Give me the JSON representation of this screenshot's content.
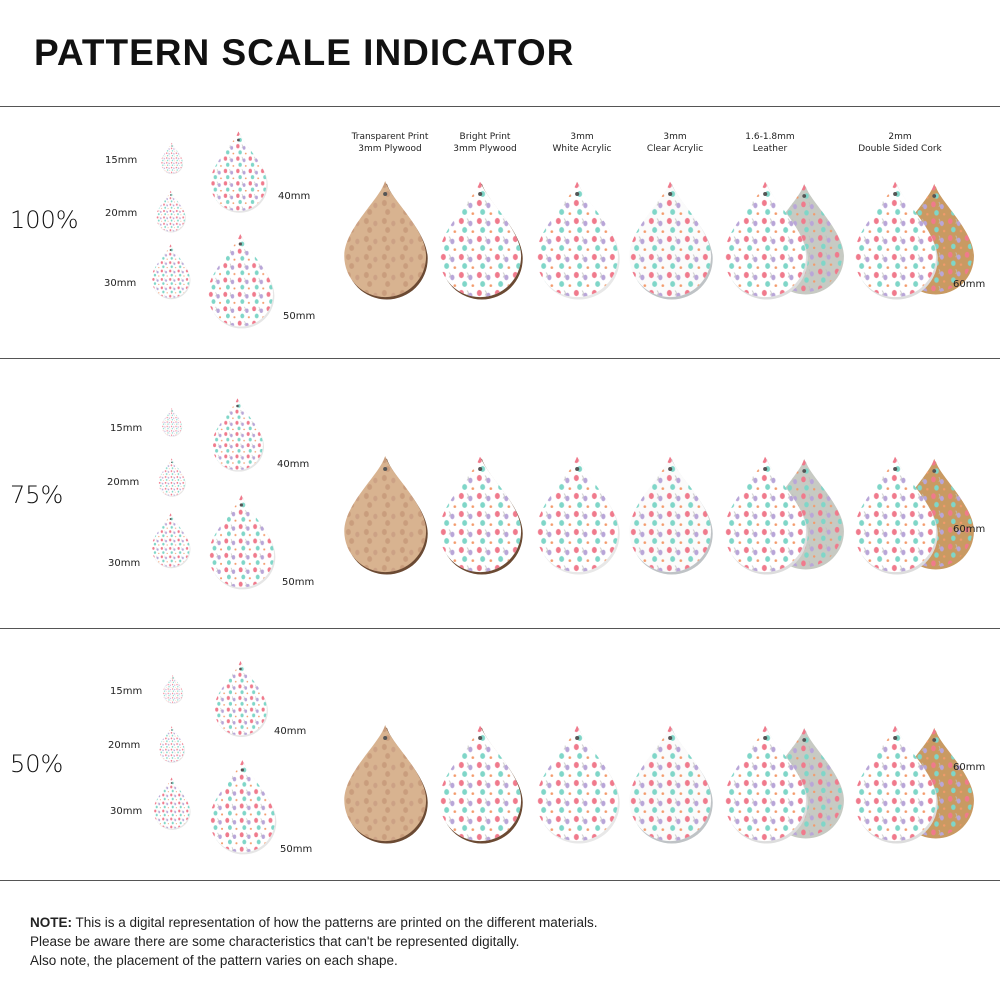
{
  "title": "PATTERN SCALE INDICATOR",
  "materials": [
    {
      "line1": "Transparent Print",
      "line2": "3mm Plywood",
      "face": "#d8b390",
      "edge": "#6b4a33",
      "back": null
    },
    {
      "line1": "Bright Print",
      "line2": "3mm Plywood",
      "face": "#ffffff",
      "edge": "#6b4a33",
      "back": null
    },
    {
      "line1": "3mm",
      "line2": "White Acrylic",
      "face": "#ffffff",
      "edge": "#e8e8e8",
      "back": null
    },
    {
      "line1": "3mm",
      "line2": "Clear Acrylic",
      "face": "#fbfbfb",
      "edge": "#bfc3c6",
      "back": null
    },
    {
      "line1": "1.6-1.8mm",
      "line2": "Leather",
      "face": "#ffffff",
      "edge": "#dddddd",
      "back": "#c7cac3"
    },
    {
      "line1": "2mm",
      "line2": "Double Sided Cork",
      "face": "#ffffff",
      "edge": "#dddddd",
      "back": "#c99a62"
    }
  ],
  "size_label_large": "60mm",
  "rows": [
    {
      "scale": "100%",
      "sizes": [
        "15mm",
        "20mm",
        "30mm",
        "40mm",
        "50mm"
      ]
    },
    {
      "scale": "75%",
      "sizes": [
        "15mm",
        "20mm",
        "30mm",
        "40mm",
        "50mm"
      ]
    },
    {
      "scale": "50%",
      "sizes": [
        "15mm",
        "20mm",
        "30mm",
        "40mm",
        "50mm"
      ]
    }
  ],
  "note": {
    "bold": "NOTE:",
    "line1": " This is a digital representation of how the patterns are printed on the different materials.",
    "line2": "Please be aware there are some characteristics that can't be represented digitally.",
    "line3": "Also note, the placement of the pattern varies on each shape."
  },
  "pattern_colors": [
    "#f07a8c",
    "#b9a6d8",
    "#7fd6c8",
    "#f5b2c2",
    "#bdbdbd",
    "#f39a6b"
  ]
}
